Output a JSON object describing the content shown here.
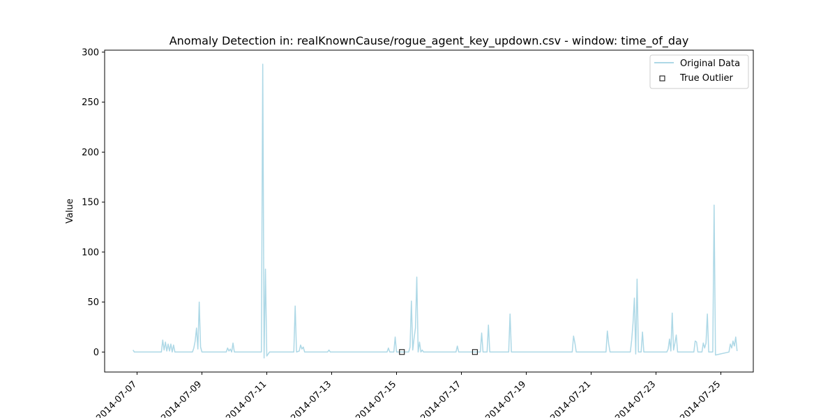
{
  "chart_data": {
    "type": "line",
    "title": "Anomaly Detection in: realKnownCause/rogue_agent_key_updown.csv - window: time_of_day",
    "xlabel": "",
    "ylabel": "Value",
    "xlim": [
      "2014-07-06 00:00",
      "2014-07-26 00:00"
    ],
    "ylim": [
      -20,
      302
    ],
    "x_ticks": [
      "2014-07-07",
      "2014-07-09",
      "2014-07-11",
      "2014-07-13",
      "2014-07-15",
      "2014-07-17",
      "2014-07-19",
      "2014-07-21",
      "2014-07-23",
      "2014-07-25"
    ],
    "y_ticks": [
      0,
      50,
      100,
      150,
      200,
      250,
      300
    ],
    "grid": false,
    "legend": {
      "placement": "top-right",
      "entries": [
        "Original Data",
        "True Outlier"
      ]
    },
    "colors": {
      "series": "#add8e6",
      "outlier_edge": "#000000"
    },
    "series": [
      {
        "name": "Original Data",
        "points": [
          [
            "2014-07-06 21:00",
            2
          ],
          [
            "2014-07-06 22:00",
            0
          ],
          [
            "2014-07-07 18:00",
            0
          ],
          [
            "2014-07-07 19:00",
            12
          ],
          [
            "2014-07-07 20:00",
            2
          ],
          [
            "2014-07-07 21:00",
            10
          ],
          [
            "2014-07-07 22:00",
            1
          ],
          [
            "2014-07-07 23:00",
            8
          ],
          [
            "2014-07-08 00:00",
            1
          ],
          [
            "2014-07-08 01:00",
            8
          ],
          [
            "2014-07-08 02:00",
            0
          ],
          [
            "2014-07-08 03:00",
            7
          ],
          [
            "2014-07-08 04:00",
            0
          ],
          [
            "2014-07-08 17:00",
            0
          ],
          [
            "2014-07-08 18:00",
            4
          ],
          [
            "2014-07-08 19:00",
            11
          ],
          [
            "2014-07-08 20:00",
            24
          ],
          [
            "2014-07-08 21:00",
            3
          ],
          [
            "2014-07-08 22:00",
            50
          ],
          [
            "2014-07-08 23:00",
            5
          ],
          [
            "2014-07-09 00:00",
            0
          ],
          [
            "2014-07-09 18:00",
            0
          ],
          [
            "2014-07-09 19:00",
            4
          ],
          [
            "2014-07-09 20:00",
            1
          ],
          [
            "2014-07-09 21:00",
            3
          ],
          [
            "2014-07-09 22:00",
            0
          ],
          [
            "2014-07-09 23:00",
            9
          ],
          [
            "2014-07-10 00:00",
            0
          ],
          [
            "2014-07-10 20:00",
            0
          ],
          [
            "2014-07-10 21:00",
            288
          ],
          [
            "2014-07-10 22:00",
            -6
          ],
          [
            "2014-07-10 23:00",
            83
          ],
          [
            "2014-07-11 00:00",
            -4
          ],
          [
            "2014-07-11 02:00",
            0
          ],
          [
            "2014-07-11 20:00",
            0
          ],
          [
            "2014-07-11 21:00",
            46
          ],
          [
            "2014-07-11 22:00",
            0
          ],
          [
            "2014-07-12 00:00",
            1
          ],
          [
            "2014-07-12 01:00",
            7
          ],
          [
            "2014-07-12 02:00",
            3
          ],
          [
            "2014-07-12 03:00",
            5
          ],
          [
            "2014-07-12 04:00",
            0
          ],
          [
            "2014-07-12 21:00",
            0
          ],
          [
            "2014-07-12 22:00",
            2
          ],
          [
            "2014-07-12 23:00",
            0
          ],
          [
            "2014-07-14 17:00",
            0
          ],
          [
            "2014-07-14 18:00",
            4
          ],
          [
            "2014-07-14 19:00",
            0
          ],
          [
            "2014-07-14 22:00",
            0
          ],
          [
            "2014-07-14 23:00",
            15
          ],
          [
            "2014-07-15 00:00",
            0
          ],
          [
            "2014-07-15 09:00",
            0
          ],
          [
            "2014-07-15 10:00",
            5
          ],
          [
            "2014-07-15 11:00",
            51
          ],
          [
            "2014-07-15 12:00",
            2
          ],
          [
            "2014-07-15 13:00",
            14
          ],
          [
            "2014-07-15 14:00",
            24
          ],
          [
            "2014-07-15 15:00",
            75
          ],
          [
            "2014-07-15 16:00",
            0
          ],
          [
            "2014-07-15 17:00",
            10
          ],
          [
            "2014-07-15 18:00",
            0
          ],
          [
            "2014-07-15 19:00",
            2
          ],
          [
            "2014-07-15 20:00",
            0
          ],
          [
            "2014-07-16 20:00",
            0
          ],
          [
            "2014-07-16 21:00",
            6
          ],
          [
            "2014-07-16 22:00",
            0
          ],
          [
            "2014-07-17 14:00",
            0
          ],
          [
            "2014-07-17 15:00",
            19
          ],
          [
            "2014-07-17 16:00",
            0
          ],
          [
            "2014-07-17 19:00",
            0
          ],
          [
            "2014-07-17 20:00",
            27
          ],
          [
            "2014-07-17 21:00",
            0
          ],
          [
            "2014-07-18 11:00",
            0
          ],
          [
            "2014-07-18 12:00",
            38
          ],
          [
            "2014-07-18 13:00",
            0
          ],
          [
            "2014-07-20 10:00",
            0
          ],
          [
            "2014-07-20 11:00",
            16
          ],
          [
            "2014-07-20 12:00",
            9
          ],
          [
            "2014-07-20 13:00",
            0
          ],
          [
            "2014-07-21 11:00",
            0
          ],
          [
            "2014-07-21 12:00",
            21
          ],
          [
            "2014-07-21 13:00",
            8
          ],
          [
            "2014-07-21 14:00",
            0
          ],
          [
            "2014-07-22 05:00",
            0
          ],
          [
            "2014-07-22 06:00",
            12
          ],
          [
            "2014-07-22 07:00",
            29
          ],
          [
            "2014-07-22 08:00",
            54
          ],
          [
            "2014-07-22 09:00",
            -2
          ],
          [
            "2014-07-22 10:00",
            73
          ],
          [
            "2014-07-22 11:00",
            0
          ],
          [
            "2014-07-22 13:00",
            0
          ],
          [
            "2014-07-22 14:00",
            20
          ],
          [
            "2014-07-22 15:00",
            0
          ],
          [
            "2014-07-23 08:00",
            0
          ],
          [
            "2014-07-23 09:00",
            3
          ],
          [
            "2014-07-23 10:00",
            13
          ],
          [
            "2014-07-23 11:00",
            1
          ],
          [
            "2014-07-23 12:00",
            39
          ],
          [
            "2014-07-23 13:00",
            2
          ],
          [
            "2014-07-23 14:00",
            9
          ],
          [
            "2014-07-23 15:00",
            17
          ],
          [
            "2014-07-23 16:00",
            0
          ],
          [
            "2014-07-24 04:00",
            0
          ],
          [
            "2014-07-24 05:00",
            11
          ],
          [
            "2014-07-24 06:00",
            10
          ],
          [
            "2014-07-24 07:00",
            0
          ],
          [
            "2014-07-24 10:00",
            0
          ],
          [
            "2014-07-24 11:00",
            9
          ],
          [
            "2014-07-24 12:00",
            4
          ],
          [
            "2014-07-24 13:00",
            9
          ],
          [
            "2014-07-24 14:00",
            38
          ],
          [
            "2014-07-24 15:00",
            0
          ],
          [
            "2014-07-24 18:00",
            0
          ],
          [
            "2014-07-24 19:00",
            147
          ],
          [
            "2014-07-24 20:00",
            -3
          ],
          [
            "2014-07-25 06:00",
            0
          ],
          [
            "2014-07-25 07:00",
            8
          ],
          [
            "2014-07-25 08:00",
            4
          ],
          [
            "2014-07-25 09:00",
            11
          ],
          [
            "2014-07-25 10:00",
            6
          ],
          [
            "2014-07-25 11:00",
            15
          ],
          [
            "2014-07-25 12:00",
            1
          ]
        ]
      },
      {
        "name": "True Outlier",
        "points": [
          [
            "2014-07-15 04:00",
            0
          ],
          [
            "2014-07-17 10:00",
            0
          ]
        ]
      }
    ]
  }
}
